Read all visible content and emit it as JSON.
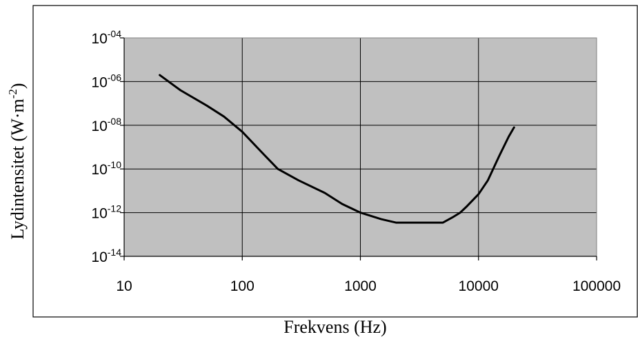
{
  "chart_data": {
    "type": "line",
    "title": "",
    "xlabel": "Frekvens (Hz)",
    "ylabel_parts": {
      "main": "Lydintensitet (W·m",
      "sup": "-2",
      "end": ")"
    },
    "x_scale": "log",
    "y_scale": "log",
    "xlim": [
      10,
      100000
    ],
    "ylim": [
      1e-14,
      0.0001
    ],
    "x_ticks": [
      {
        "value": 10,
        "label": "10"
      },
      {
        "value": 100,
        "label": "100"
      },
      {
        "value": 1000,
        "label": "1000"
      },
      {
        "value": 10000,
        "label": "10000"
      },
      {
        "value": 100000,
        "label": "100000"
      }
    ],
    "y_ticks": [
      {
        "value": 0.0001,
        "base": "10",
        "exp": "-04"
      },
      {
        "value": 1e-06,
        "base": "10",
        "exp": "-06"
      },
      {
        "value": 1e-08,
        "base": "10",
        "exp": "-08"
      },
      {
        "value": 1e-10,
        "base": "10",
        "exp": "-10"
      },
      {
        "value": 1e-12,
        "base": "10",
        "exp": "-12"
      },
      {
        "value": 1e-14,
        "base": "10",
        "exp": "-14"
      }
    ],
    "grid": true,
    "legend": "none",
    "colors": {
      "plot_bg": "#c0c0c0",
      "line": "#000000",
      "grid": "#000000",
      "page_bg": "#ffffff"
    },
    "series": [
      {
        "x": [
          20,
          30,
          50,
          70,
          100,
          150,
          200,
          300,
          500,
          700,
          1000,
          1500,
          2000,
          3000,
          4000,
          5000,
          6000,
          7000,
          8000,
          10000,
          12000,
          15000,
          18000,
          20000
        ],
        "y": [
          2e-06,
          4e-07,
          8e-08,
          2.5e-08,
          5e-09,
          5e-10,
          1e-10,
          3e-11,
          8e-12,
          2.5e-12,
          1e-12,
          5e-13,
          3.5e-13,
          3.5e-13,
          3.5e-13,
          3.5e-13,
          6e-13,
          1e-12,
          2e-12,
          7e-12,
          3e-11,
          4e-10,
          3e-09,
          8e-09
        ]
      }
    ]
  }
}
